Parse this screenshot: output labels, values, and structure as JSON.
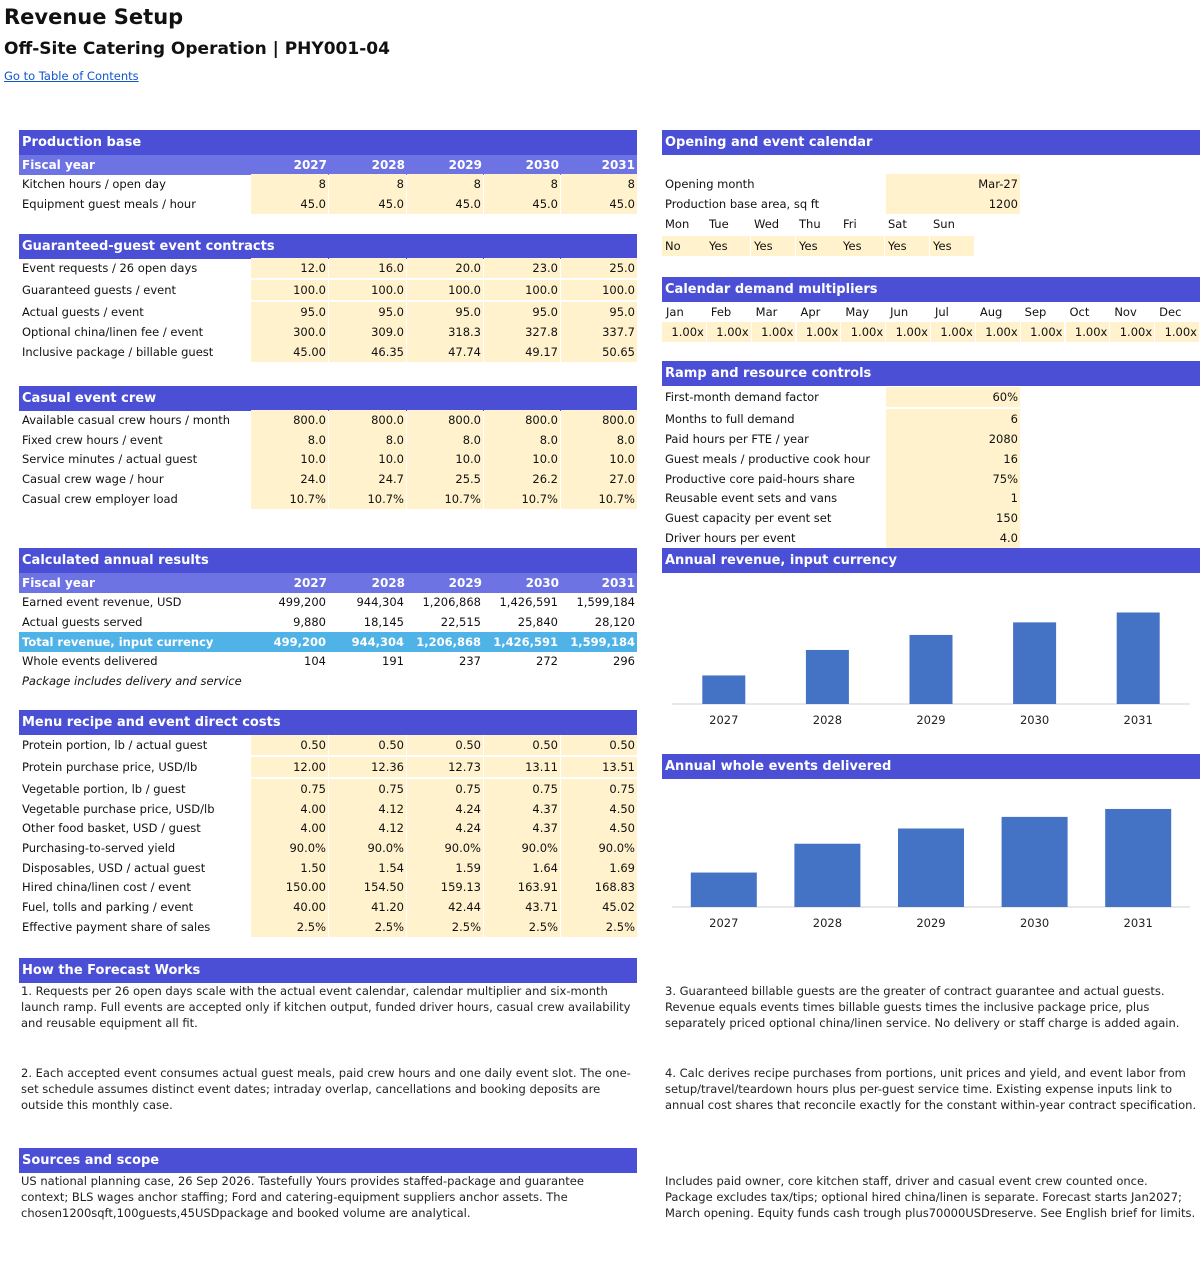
{
  "header": {
    "title": "Revenue Setup",
    "subtitle": "Off-Site Catering Operation | PHY001-04",
    "toc_link": "Go to Table of Contents"
  },
  "production_base": {
    "title": "Production base",
    "fy_label": "Fiscal year",
    "years": [
      "2027",
      "2028",
      "2029",
      "2030",
      "2031"
    ],
    "rows": [
      {
        "label": "Kitchen hours / open day",
        "values": [
          "8",
          "8",
          "8",
          "8",
          "8"
        ]
      },
      {
        "label": "Equipment guest meals / hour",
        "values": [
          "45.0",
          "45.0",
          "45.0",
          "45.0",
          "45.0"
        ]
      }
    ]
  },
  "guaranteed": {
    "title": "Guaranteed-guest event contracts",
    "rows": [
      {
        "label": "Event requests / 26 open days",
        "values": [
          "12.0",
          "16.0",
          "20.0",
          "23.0",
          "25.0"
        ]
      },
      {
        "label": "Guaranteed guests / event",
        "values": [
          "100.0",
          "100.0",
          "100.0",
          "100.0",
          "100.0"
        ]
      },
      {
        "label": "Actual guests / event",
        "values": [
          "95.0",
          "95.0",
          "95.0",
          "95.0",
          "95.0"
        ]
      },
      {
        "label": "Optional china/linen fee / event",
        "values": [
          "300.0",
          "309.0",
          "318.3",
          "327.8",
          "337.7"
        ]
      },
      {
        "label": "Inclusive package / billable guest",
        "values": [
          "45.00",
          "46.35",
          "47.74",
          "49.17",
          "50.65"
        ]
      }
    ]
  },
  "casual": {
    "title": "Casual event crew",
    "rows": [
      {
        "label": "Available casual crew hours / month",
        "values": [
          "800.0",
          "800.0",
          "800.0",
          "800.0",
          "800.0"
        ]
      },
      {
        "label": "Fixed crew hours / event",
        "values": [
          "8.0",
          "8.0",
          "8.0",
          "8.0",
          "8.0"
        ]
      },
      {
        "label": "Service minutes / actual guest",
        "values": [
          "10.0",
          "10.0",
          "10.0",
          "10.0",
          "10.0"
        ]
      },
      {
        "label": "Casual crew wage / hour",
        "values": [
          "24.0",
          "24.7",
          "25.5",
          "26.2",
          "27.0"
        ]
      },
      {
        "label": "Casual crew employer load",
        "values": [
          "10.7%",
          "10.7%",
          "10.7%",
          "10.7%",
          "10.7%"
        ]
      }
    ]
  },
  "results": {
    "title": "Calculated annual results",
    "fy_label": "Fiscal year",
    "rows": [
      {
        "label": "Earned event revenue, USD",
        "values": [
          "499,200",
          "944,304",
          "1,206,868",
          "1,426,591",
          "1,599,184"
        ]
      },
      {
        "label": "Actual guests served",
        "values": [
          "9,880",
          "18,145",
          "22,515",
          "25,840",
          "28,120"
        ]
      },
      {
        "label": "Total revenue, input currency",
        "values": [
          "499,200",
          "944,304",
          "1,206,868",
          "1,426,591",
          "1,599,184"
        ]
      },
      {
        "label": "Whole events delivered",
        "values": [
          "104",
          "191",
          "237",
          "272",
          "296"
        ]
      }
    ],
    "note": "Package includes delivery and service"
  },
  "menu": {
    "title": "Menu recipe and event direct costs",
    "rows": [
      {
        "label": "Protein portion, lb / actual guest",
        "values": [
          "0.50",
          "0.50",
          "0.50",
          "0.50",
          "0.50"
        ]
      },
      {
        "label": "Protein purchase price, USD/lb",
        "values": [
          "12.00",
          "12.36",
          "12.73",
          "13.11",
          "13.51"
        ]
      },
      {
        "label": "Vegetable portion, lb / guest",
        "values": [
          "0.75",
          "0.75",
          "0.75",
          "0.75",
          "0.75"
        ]
      },
      {
        "label": "Vegetable purchase price, USD/lb",
        "values": [
          "4.00",
          "4.12",
          "4.24",
          "4.37",
          "4.50"
        ]
      },
      {
        "label": "Other food basket, USD / guest",
        "values": [
          "4.00",
          "4.12",
          "4.24",
          "4.37",
          "4.50"
        ]
      },
      {
        "label": "Purchasing-to-served yield",
        "values": [
          "90.0%",
          "90.0%",
          "90.0%",
          "90.0%",
          "90.0%"
        ]
      },
      {
        "label": "Disposables, USD / actual guest",
        "values": [
          "1.50",
          "1.54",
          "1.59",
          "1.64",
          "1.69"
        ]
      },
      {
        "label": "Hired china/linen cost / event",
        "values": [
          "150.00",
          "154.50",
          "159.13",
          "163.91",
          "168.83"
        ]
      },
      {
        "label": "Fuel, tolls and parking / event",
        "values": [
          "40.00",
          "41.20",
          "42.44",
          "43.71",
          "45.02"
        ]
      },
      {
        "label": "Effective payment share of sales",
        "values": [
          "2.5%",
          "2.5%",
          "2.5%",
          "2.5%",
          "2.5%"
        ]
      }
    ]
  },
  "calendar": {
    "title": "Opening and event calendar",
    "opening_month_label": "Opening month",
    "opening_month": "Mar-27",
    "area_label": "Production base area, sq ft",
    "area": "1200",
    "days": [
      "Mon",
      "Tue",
      "Wed",
      "Thu",
      "Fri",
      "Sat",
      "Sun"
    ],
    "open": [
      "No",
      "Yes",
      "Yes",
      "Yes",
      "Yes",
      "Yes",
      "Yes"
    ]
  },
  "multipliers": {
    "title": "Calendar demand multipliers",
    "months": [
      "Jan",
      "Feb",
      "Mar",
      "Apr",
      "May",
      "Jun",
      "Jul",
      "Aug",
      "Sep",
      "Oct",
      "Nov",
      "Dec"
    ],
    "values": [
      "1.00x",
      "1.00x",
      "1.00x",
      "1.00x",
      "1.00x",
      "1.00x",
      "1.00x",
      "1.00x",
      "1.00x",
      "1.00x",
      "1.00x",
      "1.00x"
    ]
  },
  "ramp": {
    "title": "Ramp and resource controls",
    "rows": [
      {
        "label": "First-month demand factor",
        "value": "60%"
      },
      {
        "label": "Months to full demand",
        "value": "6"
      },
      {
        "label": "Paid hours per FTE / year",
        "value": "2080"
      },
      {
        "label": "Guest meals / productive cook hour",
        "value": "16"
      },
      {
        "label": "Productive core paid-hours share",
        "value": "75%"
      },
      {
        "label": "Reusable event sets and vans",
        "value": "1"
      },
      {
        "label": "Guest capacity per event set",
        "value": "150"
      },
      {
        "label": "Driver hours per event",
        "value": "4.0"
      }
    ]
  },
  "chart_data": [
    {
      "type": "bar",
      "title": "Annual revenue, input currency",
      "categories": [
        "2027",
        "2028",
        "2029",
        "2030",
        "2031"
      ],
      "values": [
        499200,
        944304,
        1206868,
        1426591,
        1599184
      ],
      "color": "#4472c4",
      "ylim": [
        0,
        1800000
      ],
      "grid": false
    },
    {
      "type": "bar",
      "title": "Annual whole events delivered",
      "categories": [
        "2027",
        "2028",
        "2029",
        "2030",
        "2031"
      ],
      "values": [
        104,
        191,
        237,
        272,
        296
      ],
      "color": "#4472c4",
      "ylim": [
        0,
        320
      ],
      "grid": false
    }
  ],
  "forecast": {
    "title": "How the Forecast Works",
    "notes": [
      "1. Requests per 26 open days scale with the actual event calendar, calendar multiplier and six-month launch ramp. Full events are accepted only if kitchen output, funded driver hours, casual crew availability and reusable equipment all fit.",
      "2. Each accepted event consumes actual guest meals, paid crew hours and one daily event slot. The one-set schedule assumes distinct event dates; intraday overlap, cancellations and booking deposits are outside this monthly case.",
      "3. Guaranteed billable guests are the greater of contract guarantee and actual guests. Revenue equals events times billable guests times the inclusive package price, plus separately priced optional china/linen service. No delivery or staff charge is added again.",
      "4. Calc derives recipe purchases from portions, unit prices and yield, and event labor from setup/travel/teardown hours plus per-guest service time. Existing expense inputs link to annual cost shares that reconcile exactly for the constant within-year contract specification."
    ]
  },
  "sources": {
    "title": "Sources and scope",
    "left": "US national planning case, 26 Sep 2026. Tastefully Yours provides staffed-package and guarantee context; BLS wages anchor staffing; Ford and catering-equipment suppliers anchor assets. The chosen1200sqft,100guests,45USDpackage and booked volume are analytical.",
    "right": "Includes paid owner, core kitchen staff, driver and casual event crew counted once. Package excludes tax/tips; optional hired china/linen is separate. Forecast starts Jan2027; March opening. Equity funds cash trough plus70000USDreserve. See English brief for limits."
  }
}
